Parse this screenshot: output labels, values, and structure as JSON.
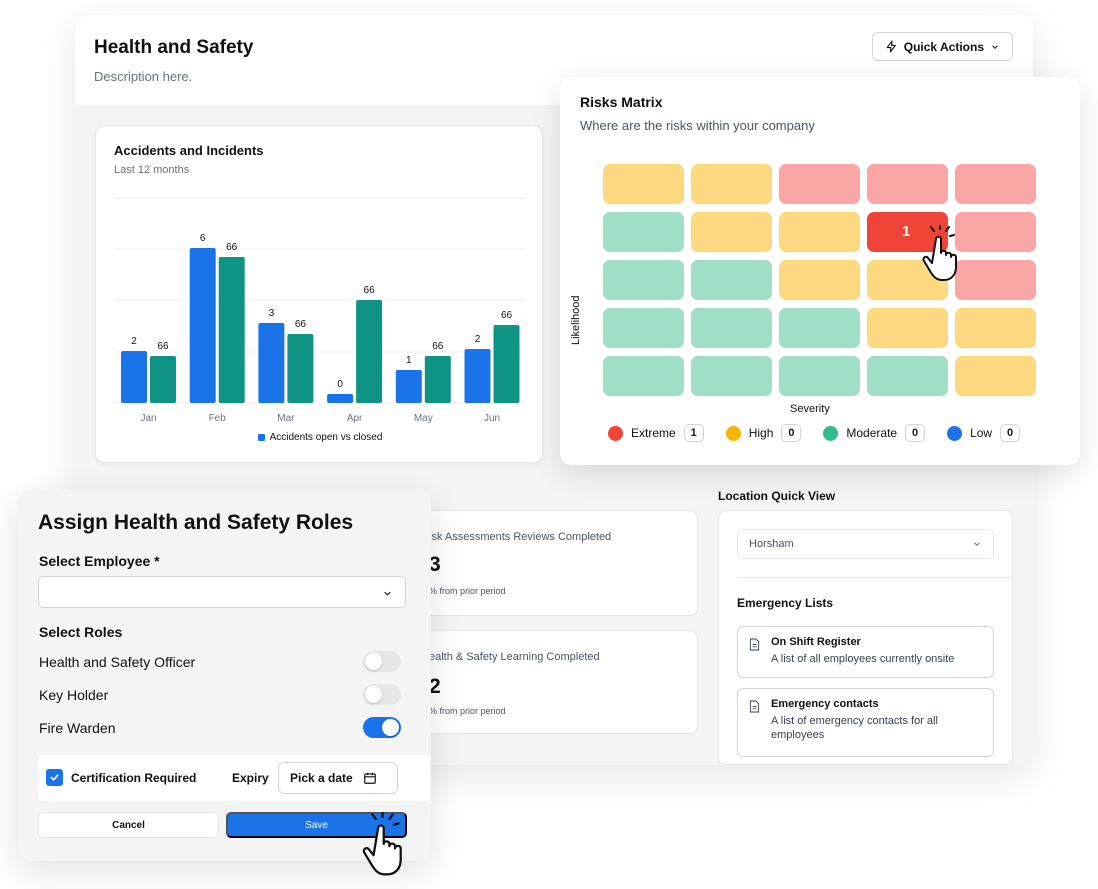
{
  "header": {
    "title": "Health and Safety",
    "description": "Description here.",
    "quick_actions_label": "Quick Actions"
  },
  "accidents": {
    "title": "Accidents and Incidents",
    "subtitle": "Last 12 months",
    "legend_label": "Accidents open vs closed"
  },
  "chart_data": {
    "type": "bar",
    "title": "Accidents and Incidents",
    "subtitle": "Last 12 months",
    "categories": [
      "Jan",
      "Feb",
      "Mar",
      "Apr",
      "May",
      "Jun"
    ],
    "series": [
      {
        "values": [
          2,
          6,
          3,
          0,
          1,
          2
        ],
        "display_heights": [
          52,
          155,
          80,
          9,
          33,
          54
        ],
        "color": "#1a73e8"
      },
      {
        "values": [
          66,
          66,
          66,
          66,
          66,
          66
        ],
        "display_heights": [
          47,
          146,
          69,
          103,
          47,
          78
        ],
        "color": "#0e9384"
      }
    ],
    "legend": [
      "Accidents open vs closed"
    ],
    "legend_position": "bottom",
    "grid": true,
    "xlabel": "",
    "ylabel": ""
  },
  "risks": {
    "title": "Risks Matrix",
    "subtitle": "Where are the risks within your company",
    "xlabel": "Severity",
    "ylabel": "Likelihood",
    "grid": [
      [
        "moderate",
        "moderate",
        "extreme",
        "extreme",
        "extreme"
      ],
      [
        "low",
        "moderate",
        "moderate",
        "extreme",
        "extreme"
      ],
      [
        "low",
        "low",
        "moderate",
        "moderate",
        "extreme"
      ],
      [
        "low",
        "low",
        "low",
        "moderate",
        "moderate"
      ],
      [
        "low",
        "low",
        "low",
        "low",
        "moderate"
      ]
    ],
    "highlight": {
      "row": 1,
      "col": 3,
      "value": "1"
    },
    "colors": {
      "extreme": "#fca5a5",
      "moderate": "#fcd980",
      "low": "#9fdfc6",
      "highlight": "#f04438"
    },
    "legend": [
      {
        "label": "Extreme",
        "count": "1",
        "color": "#f04438"
      },
      {
        "label": "High",
        "count": "0",
        "color": "#f7b500"
      },
      {
        "label": "Moderate",
        "count": "0",
        "color": "#2ebd8f"
      },
      {
        "label": "Low",
        "count": "0",
        "color": "#1a73e8"
      }
    ]
  },
  "stats": {
    "card1_label": "isk Assessments Reviews Completed",
    "card1_value": "3",
    "card1_note": "% from prior period",
    "card2_label": "ealth & Safety Learning Completed",
    "card2_value": "2",
    "card2_note": "% from prior period"
  },
  "location": {
    "title": "Location Quick View",
    "selected": "Horsham",
    "emergency_title": "Emergency Lists",
    "items": [
      {
        "name": "On Shift Register",
        "desc": "A list of all employees currently onsite"
      },
      {
        "name": "Emergency contacts",
        "desc": "A list of emergency contacts for all employees"
      }
    ]
  },
  "roles": {
    "title": "Assign Health and Safety Roles",
    "employee_label": "Select Employee *",
    "roles_label": "Select Roles",
    "role_items": [
      {
        "label": "Health and Safety Officer",
        "on": false
      },
      {
        "label": "Key Holder",
        "on": false
      },
      {
        "label": "Fire Warden",
        "on": true
      }
    ],
    "cert_label": "Certification Required",
    "expiry_label": "Expiry",
    "date_placeholder": "Pick a date",
    "cancel_label": "Cancel",
    "save_label": "Save"
  }
}
